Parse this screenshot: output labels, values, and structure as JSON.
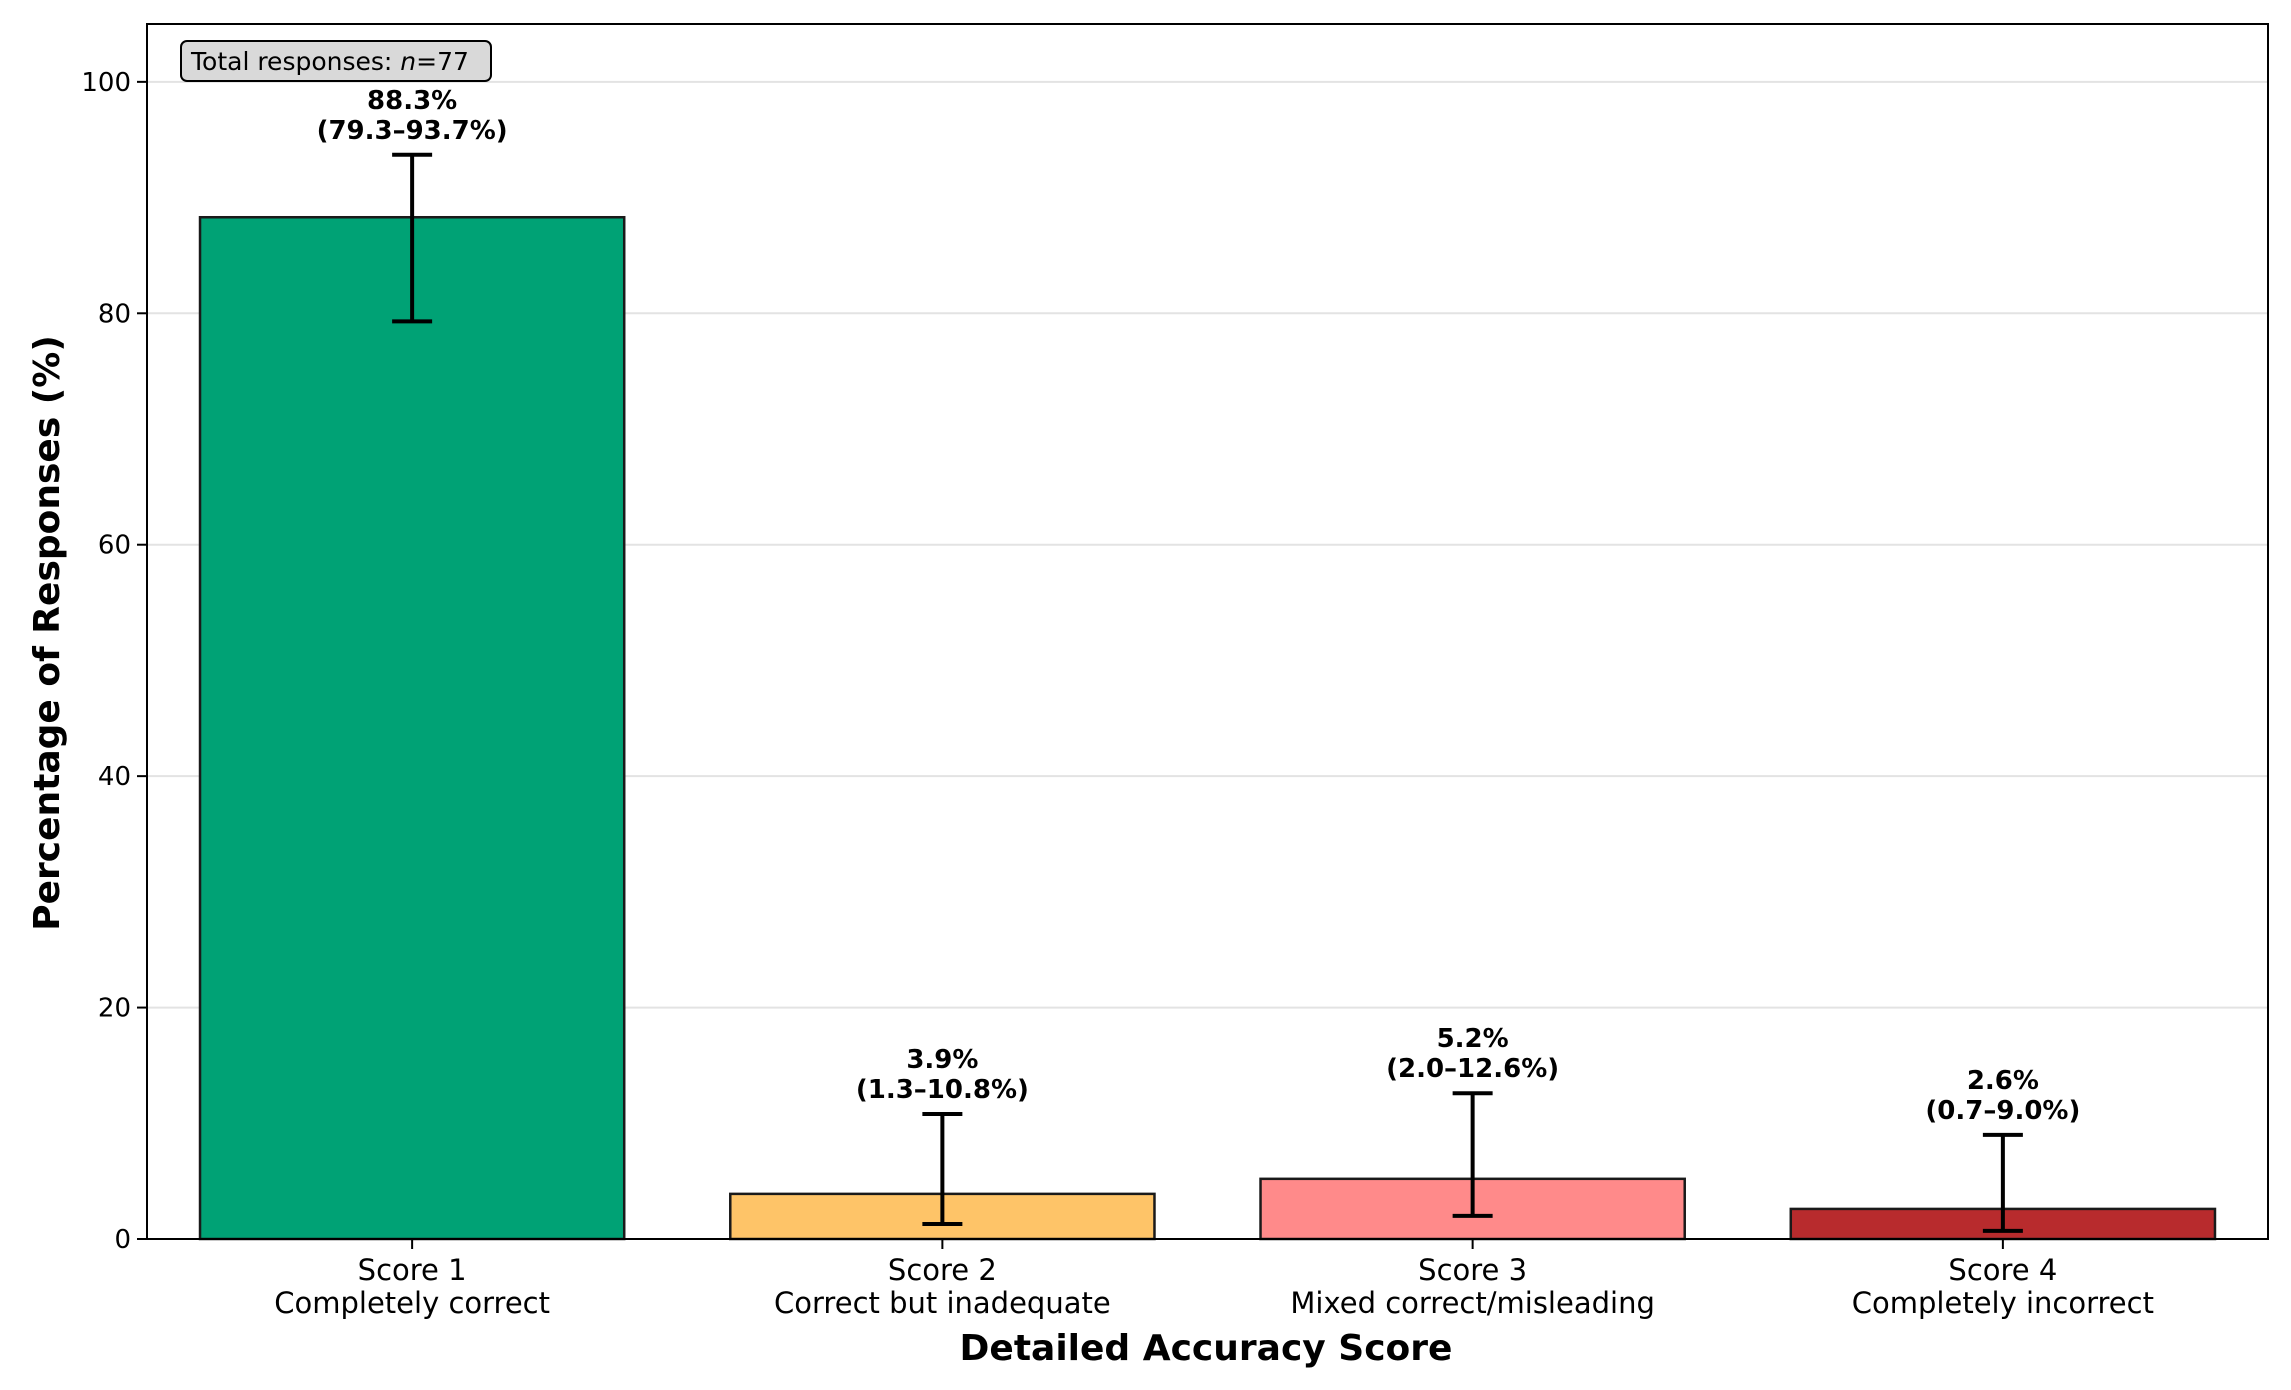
{
  "chart_data": {
    "type": "bar",
    "categories": [
      {
        "line1": "Score 1",
        "line2": "Completely correct"
      },
      {
        "line1": "Score 2",
        "line2": "Correct but inadequate"
      },
      {
        "line1": "Score 3",
        "line2": "Mixed correct/misleading"
      },
      {
        "line1": "Score 4",
        "line2": "Completely incorrect"
      }
    ],
    "values": [
      88.3,
      3.9,
      5.2,
      2.6
    ],
    "ci_low": [
      79.3,
      1.3,
      2.0,
      0.7
    ],
    "ci_high": [
      93.7,
      10.8,
      12.6,
      9.0
    ],
    "value_labels": [
      "88.3%",
      "3.9%",
      "5.2%",
      "2.6%"
    ],
    "ci_labels": [
      "(79.3–93.7%)",
      "(1.3–10.8%)",
      "(2.0–12.6%)",
      "(0.7–9.0%)"
    ],
    "colors": [
      "#00A275",
      "#FEC468",
      "#FF8A8A",
      "#B82B2D"
    ],
    "xlabel": "Detailed Accuracy Score",
    "ylabel": "Percentage of Responses (%)",
    "ylim": [
      0,
      105
    ],
    "yticks": [
      0,
      20,
      40,
      60,
      80,
      100
    ],
    "grid": "horizontal",
    "annotation": {
      "prefix": "Total responses: ",
      "n_symbol": "n",
      "suffix": "=77"
    }
  }
}
